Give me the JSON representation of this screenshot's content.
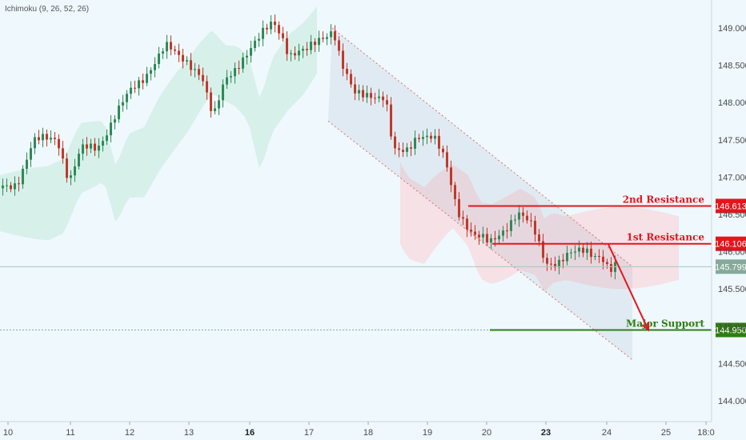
{
  "indicator": {
    "label": "Ichimoku (9, 26, 52, 26)"
  },
  "colors": {
    "background": "#eef8fd",
    "bull": "#2e8b57",
    "bear": "#c0392b",
    "cloud_green": "#d2eee6",
    "cloud_red": "#f6dde2",
    "channel": "#e07070",
    "resistance": "#e3161c",
    "support": "#2f7d14",
    "current": "#a9c9bd",
    "axis_text": "#4a4a4a"
  },
  "chart_data": {
    "type": "candlestick",
    "instrument_note": "",
    "y_range": [
      144.3,
      149.2
    ],
    "y_ticks": [
      "149.000",
      "148.500",
      "148.000",
      "147.500",
      "147.000",
      "146.500",
      "146.000",
      "145.500",
      "145.000",
      "144.500",
      "144.000"
    ],
    "x_ticks": [
      {
        "label": "10",
        "bold": false
      },
      {
        "label": "11",
        "bold": false
      },
      {
        "label": "12",
        "bold": false
      },
      {
        "label": "13",
        "bold": false
      },
      {
        "label": "16",
        "bold": true
      },
      {
        "label": "17",
        "bold": false
      },
      {
        "label": "18",
        "bold": false
      },
      {
        "label": "19",
        "bold": false
      },
      {
        "label": "20",
        "bold": false
      },
      {
        "label": "23",
        "bold": true
      },
      {
        "label": "24",
        "bold": false
      },
      {
        "label": "25",
        "bold": false
      },
      {
        "label": "18:0",
        "bold": false
      }
    ],
    "price_path": [
      [
        0,
        146.85
      ],
      [
        20,
        146.95
      ],
      [
        40,
        147.45
      ],
      [
        55,
        147.5
      ],
      [
        70,
        147.55
      ],
      [
        85,
        146.95
      ],
      [
        100,
        147.35
      ],
      [
        120,
        147.4
      ],
      [
        140,
        147.8
      ],
      [
        160,
        148.1
      ],
      [
        175,
        148.3
      ],
      [
        190,
        148.55
      ],
      [
        205,
        148.75
      ],
      [
        220,
        148.6
      ],
      [
        235,
        148.55
      ],
      [
        250,
        148.4
      ],
      [
        265,
        147.75
      ],
      [
        280,
        148.3
      ],
      [
        300,
        148.6
      ],
      [
        320,
        148.8
      ],
      [
        340,
        149.1
      ],
      [
        350,
        148.95
      ],
      [
        360,
        148.65
      ],
      [
        380,
        148.65
      ],
      [
        400,
        148.9
      ],
      [
        415,
        149.0
      ],
      [
        425,
        148.5
      ],
      [
        440,
        148.1
      ],
      [
        460,
        148.15
      ],
      [
        480,
        148.05
      ],
      [
        490,
        147.3
      ],
      [
        505,
        147.35
      ],
      [
        520,
        147.6
      ],
      [
        540,
        147.5
      ],
      [
        555,
        147.2
      ],
      [
        570,
        146.6
      ],
      [
        590,
        146.2
      ],
      [
        610,
        146.1
      ],
      [
        625,
        146.3
      ],
      [
        645,
        146.5
      ],
      [
        665,
        146.3
      ],
      [
        680,
        145.9
      ],
      [
        695,
        145.85
      ],
      [
        715,
        145.95
      ],
      [
        730,
        146.05
      ],
      [
        750,
        145.95
      ],
      [
        760,
        145.7
      ],
      [
        770,
        145.799
      ]
    ],
    "levels": [
      {
        "name": "2nd Resistance",
        "value": "146.613",
        "price": 146.613,
        "type": "resistance"
      },
      {
        "name": "1st Resistance",
        "value": "146.106",
        "price": 146.106,
        "type": "resistance"
      },
      {
        "name": "Major Support",
        "value": "144.950",
        "price": 144.95,
        "type": "support"
      }
    ],
    "current_price": {
      "value": "145.799",
      "price": 145.799
    },
    "channel": {
      "upper": [
        [
          415,
          149.0
        ],
        [
          790,
          145.8
        ]
      ],
      "lower": [
        [
          410,
          147.75
        ],
        [
          790,
          144.55
        ]
      ]
    },
    "projection": {
      "from": [
        760,
        146.1
      ],
      "to": [
        810,
        144.95
      ]
    }
  }
}
